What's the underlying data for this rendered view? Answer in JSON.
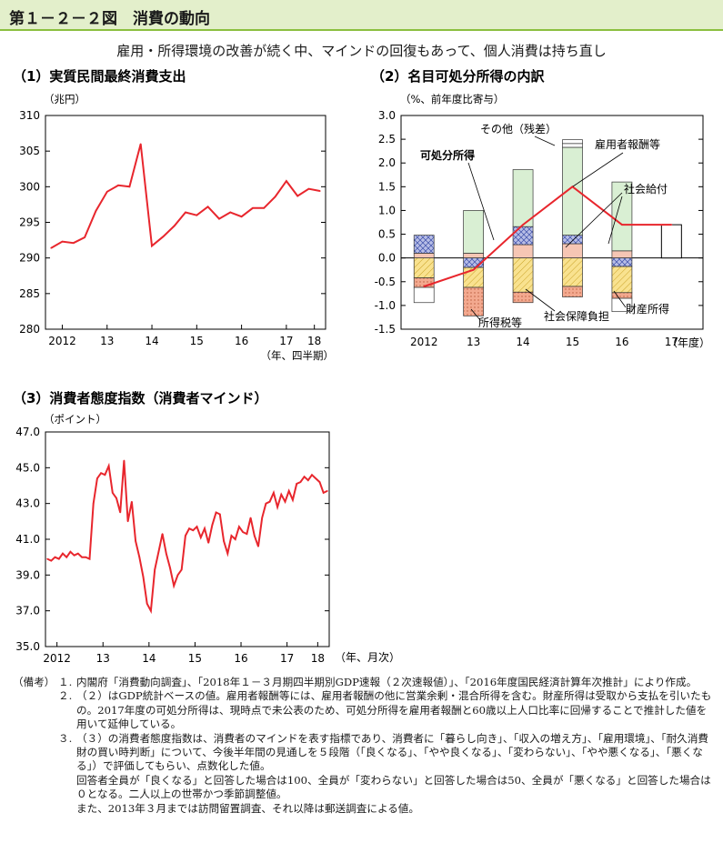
{
  "header": {
    "figure_title": "第１－２－２図　消費の動向",
    "subtitle": "雇用・所得環境の改善が続く中、マインドの回復もあって、個人消費は持ち直し"
  },
  "colors": {
    "line": "#e8262d",
    "employee": "#d9efd3",
    "social_benefit": "#f6c6b4",
    "property": "#b7bde6",
    "social_burden": "#f9e28f",
    "tax": "#f3a98f",
    "other": "#ffffff",
    "title_bg": "#e3efcb",
    "title_border": "#8bbf3f"
  },
  "chart_data": [
    {
      "id": "consumption",
      "type": "line",
      "title": "（1）実質民間最終消費支出",
      "ylabel": "（兆円）",
      "xlabel": "（年、四半期）",
      "ylim": [
        280,
        310
      ],
      "yticks": [
        280,
        285,
        290,
        295,
        300,
        305,
        310
      ],
      "x_tick_labels": [
        {
          "label": "2012",
          "x": 1.5
        },
        {
          "label": "13",
          "x": 5.5
        },
        {
          "label": "14",
          "x": 9.5
        },
        {
          "label": "15",
          "x": 13.5
        },
        {
          "label": "16",
          "x": 17.5
        },
        {
          "label": "17",
          "x": 21.5
        },
        {
          "label": "18",
          "x": 24
        }
      ],
      "x_range": [
        0,
        25
      ],
      "values": [
        291.4,
        292.3,
        292.1,
        292.9,
        296.6,
        299.3,
        300.2,
        300.0,
        306.0,
        291.7,
        293.0,
        294.5,
        296.4,
        296.0,
        297.2,
        295.5,
        296.4,
        295.8,
        297.0,
        297.0,
        298.6,
        300.8,
        298.7,
        299.7,
        299.4
      ]
    },
    {
      "id": "income",
      "type": "bar",
      "stacked": true,
      "title": "（2）名目可処分所得の内訳",
      "ylabel": "（%、前年度比寄与）",
      "xlabel": "（年度）",
      "ylim": [
        -1.5,
        3.0
      ],
      "yticks": [
        -1.5,
        -1.0,
        -0.5,
        0.0,
        0.5,
        1.0,
        1.5,
        2.0,
        2.5,
        3.0
      ],
      "categories": [
        "2012",
        "13",
        "14",
        "15",
        "16",
        "17"
      ],
      "series": [
        {
          "name": "雇用者報酬等",
          "key": "employee",
          "values": [
            0.0,
            0.9,
            1.2,
            1.85,
            1.45,
            0
          ]
        },
        {
          "name": "社会給付",
          "key": "social_benefit",
          "values": [
            0.1,
            0.1,
            0.28,
            0.3,
            0.15,
            0
          ]
        },
        {
          "name": "財産所得",
          "key": "property",
          "values": [
            0.38,
            -0.2,
            0.38,
            0.18,
            -0.18,
            0
          ]
        },
        {
          "name": "社会保障負担",
          "key": "social_burden",
          "values": [
            -0.42,
            -0.42,
            -0.72,
            -0.6,
            -0.55,
            0
          ]
        },
        {
          "name": "所得税等",
          "key": "tax",
          "values": [
            -0.2,
            -0.6,
            -0.22,
            -0.22,
            -0.12,
            0
          ]
        },
        {
          "name": "その他（残差）",
          "key": "other",
          "values": [
            -0.32,
            0.0,
            0.0,
            0.08,
            -0.28,
            0
          ]
        }
      ],
      "line": {
        "name": "可処分所得",
        "values": [
          -0.6,
          -0.25,
          0.7,
          1.5,
          0.7,
          0.7
        ]
      },
      "estimate_bar": {
        "category": "17",
        "value": 0.7
      }
    },
    {
      "id": "mind",
      "type": "line",
      "title": "（3）消費者態度指数（消費者マインド）",
      "ylabel": "（ポイント）",
      "xlabel": "（年、月次）",
      "ylim": [
        35.0,
        47.0
      ],
      "yticks": [
        35.0,
        37.0,
        39.0,
        41.0,
        43.0,
        45.0,
        47.0
      ],
      "x_tick_labels": [
        {
          "label": "2012",
          "x": 3
        },
        {
          "label": "13",
          "x": 15
        },
        {
          "label": "14",
          "x": 27
        },
        {
          "label": "15",
          "x": 39
        },
        {
          "label": "16",
          "x": 51
        },
        {
          "label": "17",
          "x": 63
        },
        {
          "label": "18",
          "x": 71
        }
      ],
      "x_range": [
        0,
        74
      ],
      "values": [
        39.9,
        39.8,
        40.0,
        39.9,
        40.2,
        40.0,
        40.3,
        40.1,
        40.2,
        40.0,
        40.0,
        39.9,
        43.0,
        44.4,
        44.7,
        44.6,
        45.1,
        43.6,
        43.3,
        42.5,
        45.4,
        42.0,
        43.1,
        40.9,
        40.0,
        38.9,
        37.4,
        37.0,
        39.3,
        40.3,
        41.3,
        40.2,
        39.4,
        38.4,
        39.0,
        39.3,
        41.2,
        41.6,
        41.5,
        41.7,
        41.1,
        41.6,
        40.8,
        41.8,
        42.5,
        42.4,
        40.9,
        40.2,
        41.2,
        41.0,
        41.7,
        41.4,
        41.3,
        42.2,
        41.2,
        40.6,
        42.2,
        43.0,
        43.1,
        43.6,
        42.8,
        43.5,
        43.1,
        43.7,
        43.2,
        44.1,
        44.2,
        44.5,
        44.3,
        44.6,
        44.4,
        44.2,
        43.6,
        43.7
      ]
    }
  ],
  "annotations": {
    "other": "その他（残差）",
    "disposable": "可処分所得",
    "employee": "雇用者報酬等",
    "social_benefit": "社会給付",
    "tax": "所得税等",
    "social_burden": "社会保障負担",
    "property": "財産所得"
  },
  "notes": {
    "head": "（備考）",
    "items": [
      {
        "num": "１.",
        "lines": [
          "内閣府「消費動向調査」、「2018年１－３月期四半期別GDP速報（２次速報値）」、「2016年度国民経済計算年次推計」により作成。"
        ]
      },
      {
        "num": "２.",
        "lines": [
          "（２）はGDP統計ベースの値。雇用者報酬等には、雇用者報酬の他に営業余剰・混合所得を含む。財産所得は受取から支払を引いたもの。2017年度の可処分所得は、現時点で未公表のため、可処分所得を雇用者報酬と60歳以上人口比率に回帰することで推計した値を用いて延伸している。"
        ]
      },
      {
        "num": "３.",
        "lines": [
          "（３）の消費者態度指数は、消費者のマインドを表す指標であり、消費者に「暮らし向き」、「収入の増え方」、「雇用環境」、「耐久消費財の買い時判断」について、今後半年間の見通しを５段階（「良くなる」、「やや良くなる」、「変わらない」、「やや悪くなる」、「悪くなる」）で評価してもらい、点数化した値。",
          "回答者全員が「良くなる」と回答した場合は100、全員が「変わらない」と回答した場合は50、全員が「悪くなる」と回答した場合は０となる。二人以上の世帯かつ季節調整値。",
          "また、2013年３月までは訪問留置調査、それ以降は郵送調査による値。"
        ]
      }
    ]
  }
}
